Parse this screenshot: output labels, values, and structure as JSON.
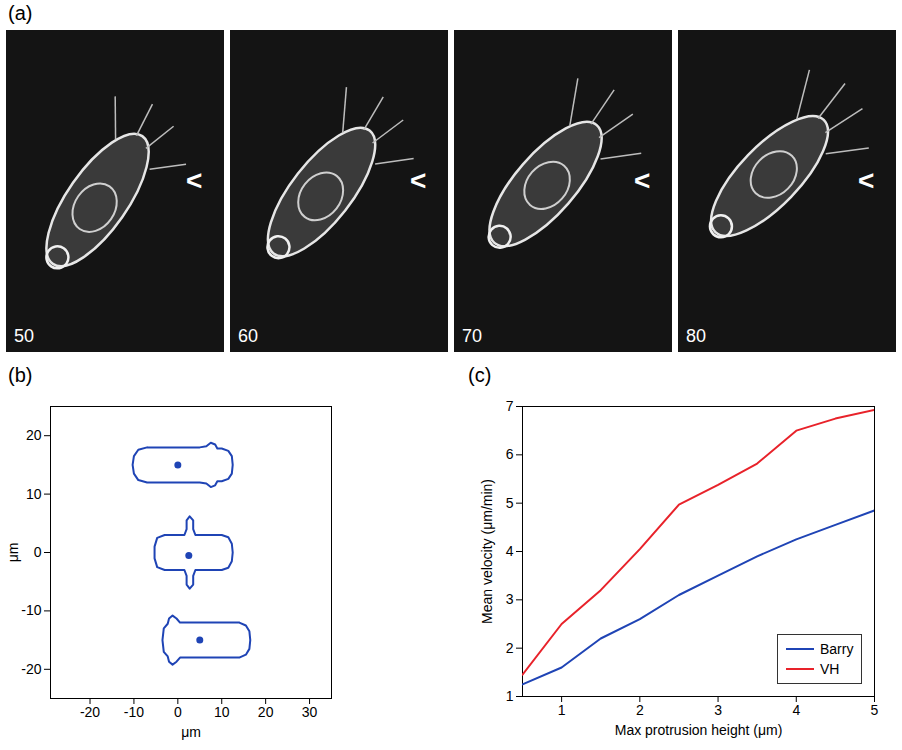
{
  "image_panel": {
    "label": "(a)",
    "frames": [
      50,
      60,
      70,
      80
    ],
    "pointer": "<"
  },
  "chart_data": [
    {
      "panel": "(b)",
      "type": "outline",
      "xlabel": "μm",
      "ylabel": "μm",
      "xlim": [
        -29,
        35
      ],
      "ylim": [
        -25,
        25
      ],
      "xticks": [
        -20,
        -10,
        0,
        10,
        20,
        30
      ],
      "yticks": [
        -20,
        -10,
        0,
        10,
        20
      ],
      "color": "#1f44b5",
      "shapes": [
        {
          "outline": [
            [
              -7,
              18
            ],
            [
              -9,
              17.6
            ],
            [
              -10,
              16.5
            ],
            [
              -10.3,
              15
            ],
            [
              -10,
              13.5
            ],
            [
              -9,
              12.4
            ],
            [
              -7,
              12
            ],
            [
              0,
              12
            ],
            [
              5,
              12
            ],
            [
              6.5,
              11.8
            ],
            [
              7.5,
              11.2
            ],
            [
              8.5,
              11.5
            ],
            [
              9,
              12.2
            ],
            [
              10,
              12.2
            ],
            [
              11.5,
              12.6
            ],
            [
              12.3,
              13.5
            ],
            [
              12.5,
              15
            ],
            [
              12.3,
              16.5
            ],
            [
              11.5,
              17.4
            ],
            [
              10,
              17.8
            ],
            [
              9,
              17.8
            ],
            [
              8.5,
              18.5
            ],
            [
              7.5,
              18.8
            ],
            [
              6.5,
              18.2
            ],
            [
              5,
              18
            ],
            [
              0,
              18
            ],
            [
              -7,
              18
            ]
          ],
          "centroid": [
            0,
            15
          ]
        },
        {
          "outline": [
            [
              -3,
              3
            ],
            [
              -4.7,
              2.5
            ],
            [
              -5.3,
              1
            ],
            [
              -5.3,
              -1
            ],
            [
              -4.7,
              -2.5
            ],
            [
              -3,
              -3
            ],
            [
              1.5,
              -3
            ],
            [
              2,
              -4
            ],
            [
              2,
              -5.5
            ],
            [
              2.7,
              -6.2
            ],
            [
              3.5,
              -5.5
            ],
            [
              3.5,
              -4
            ],
            [
              4,
              -3
            ],
            [
              10,
              -3
            ],
            [
              11.5,
              -2.6
            ],
            [
              12.3,
              -1.5
            ],
            [
              12.5,
              0
            ],
            [
              12.3,
              1.5
            ],
            [
              11.5,
              2.6
            ],
            [
              10,
              3
            ],
            [
              4,
              3
            ],
            [
              3.5,
              4
            ],
            [
              3.5,
              5.5
            ],
            [
              2.7,
              6.2
            ],
            [
              2,
              5.5
            ],
            [
              2,
              4
            ],
            [
              1.5,
              3
            ],
            [
              -3,
              3
            ]
          ],
          "centroid": [
            2.5,
            -0.5
          ]
        },
        {
          "outline": [
            [
              14,
              -12
            ],
            [
              0.5,
              -12
            ],
            [
              -0.3,
              -11.3
            ],
            [
              -1.2,
              -10.8
            ],
            [
              -2,
              -11.3
            ],
            [
              -2.3,
              -12.2
            ],
            [
              -3.2,
              -13
            ],
            [
              -3.5,
              -15
            ],
            [
              -3.2,
              -17
            ],
            [
              -2.3,
              -17.8
            ],
            [
              -2,
              -18.7
            ],
            [
              -1.2,
              -19.2
            ],
            [
              -0.3,
              -18.7
            ],
            [
              0.5,
              -18
            ],
            [
              14,
              -18
            ],
            [
              15.5,
              -17.5
            ],
            [
              16.3,
              -16.5
            ],
            [
              16.5,
              -15
            ],
            [
              16.3,
              -13.5
            ],
            [
              15.5,
              -12.5
            ],
            [
              14,
              -12
            ]
          ],
          "centroid": [
            5,
            -15
          ]
        }
      ]
    },
    {
      "panel": "(c)",
      "type": "line",
      "xlabel": "Max protrusion height (μm)",
      "ylabel": "Mean velocity (μm/min)",
      "x": [
        0.5,
        1,
        1.5,
        2,
        2.5,
        3,
        3.5,
        4,
        4.5,
        5
      ],
      "series": [
        {
          "name": "Barry",
          "color": "#1f44b5",
          "values": [
            1.25,
            1.6,
            2.2,
            2.6,
            3.1,
            3.5,
            3.9,
            4.25,
            4.55,
            4.85
          ]
        },
        {
          "name": "VH",
          "color": "#e8222a",
          "values": [
            1.45,
            2.5,
            3.2,
            4.05,
            4.97,
            5.38,
            5.82,
            6.5,
            6.75,
            6.93
          ]
        }
      ],
      "xlim": [
        0.5,
        5
      ],
      "ylim": [
        1,
        7
      ],
      "xticks": [
        1,
        2,
        3,
        4,
        5
      ],
      "yticks": [
        1,
        2,
        3,
        4,
        5,
        6,
        7
      ],
      "legend": "lower right"
    }
  ]
}
